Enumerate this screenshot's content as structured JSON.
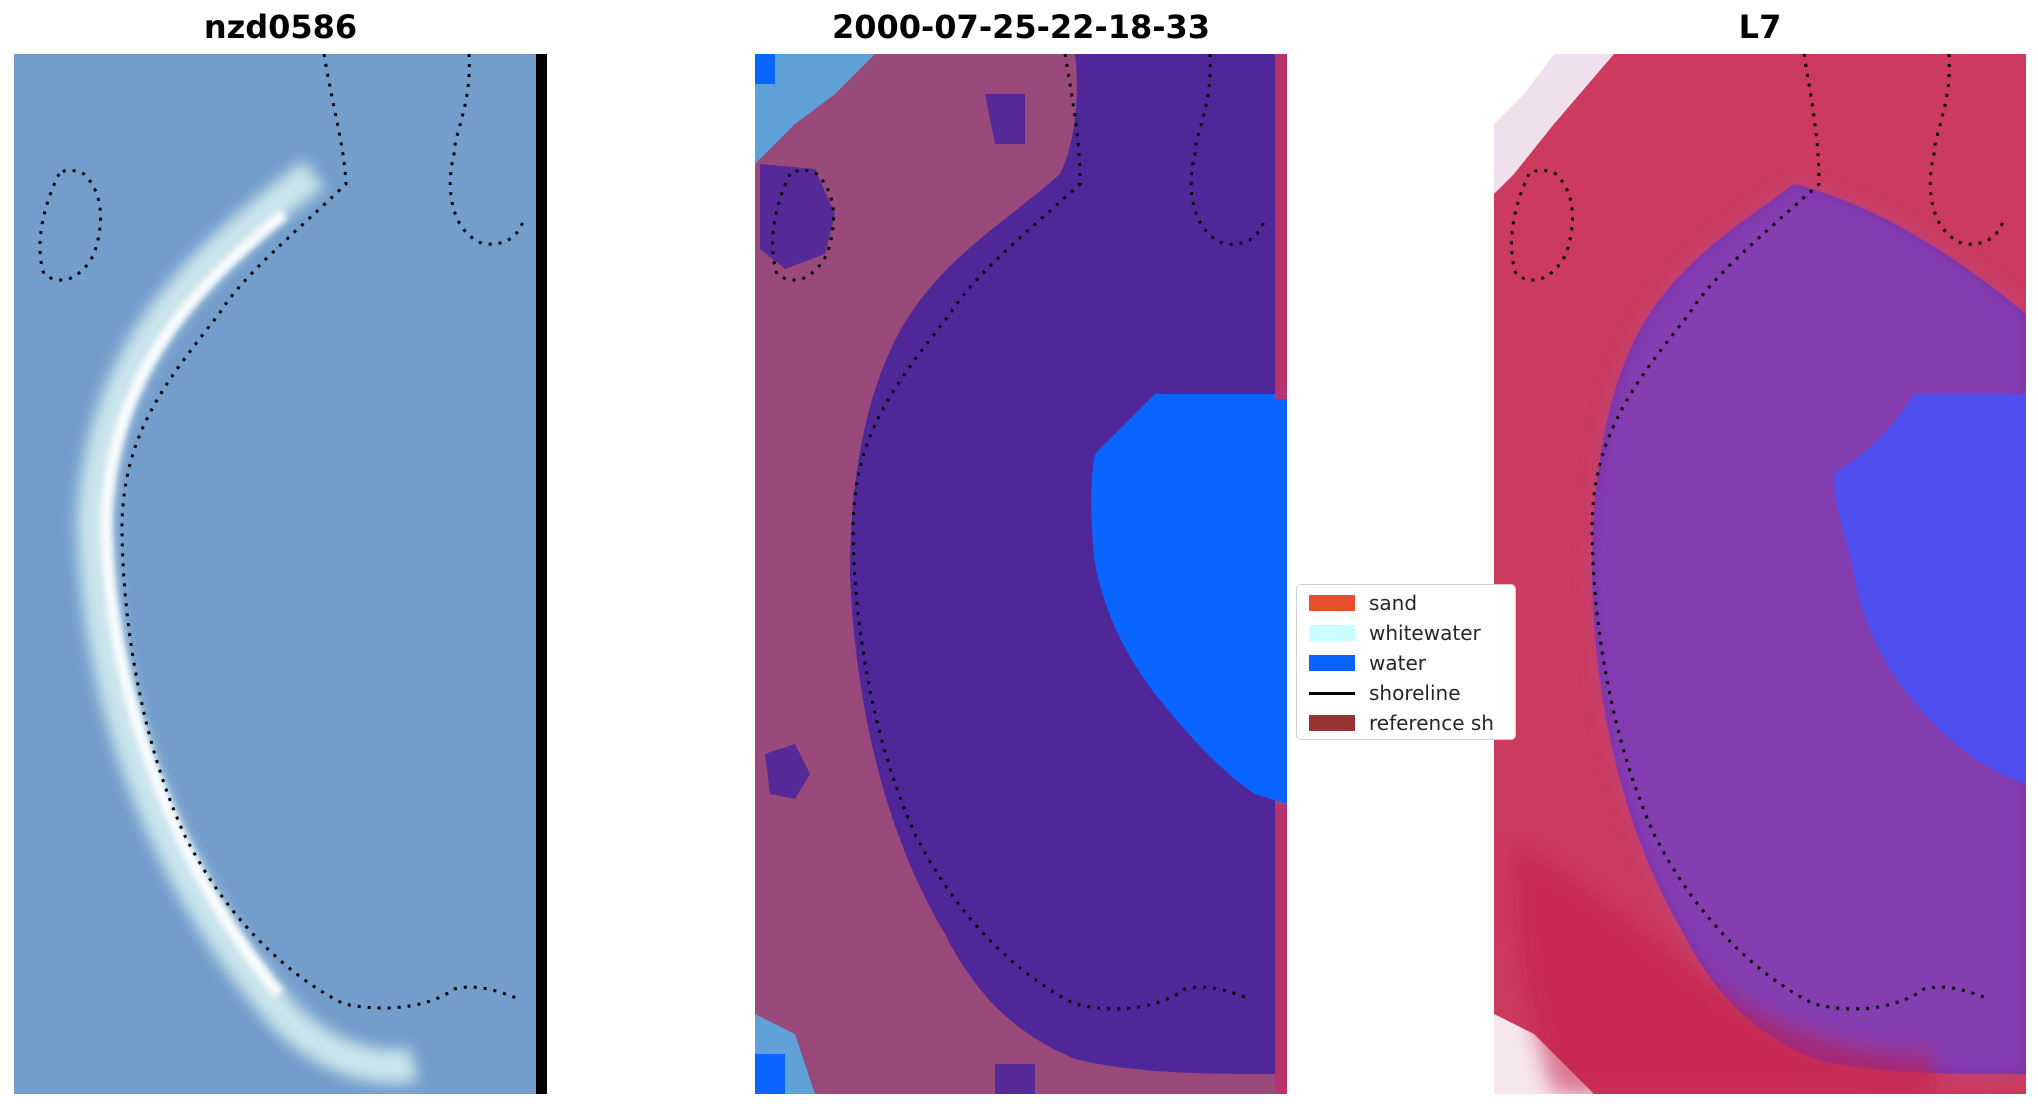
{
  "panels": [
    {
      "title": "nzd0586"
    },
    {
      "title": "2000-07-25-22-18-33"
    },
    {
      "title": "L7"
    }
  ],
  "legend": {
    "items": [
      {
        "label": "sand",
        "color": "#e8502c",
        "type": "patch"
      },
      {
        "label": "whitewater",
        "color": "#c8ffff",
        "type": "patch"
      },
      {
        "label": "water",
        "color": "#0a64ff",
        "type": "patch"
      },
      {
        "label": "shoreline",
        "color": "#000000",
        "type": "line"
      },
      {
        "label": "reference sh",
        "color": "#993333",
        "type": "patch"
      }
    ]
  },
  "colors": {
    "rgb_background": "#6e98cc",
    "rgb_beach": "#dff4f4",
    "classified_land": "#9a4a7a",
    "classified_water_dark": "#4f2799",
    "classified_water_bright": "#0a64ff",
    "index_land": "#cc3a5e",
    "index_water": "#7a2fa8",
    "index_bright_blue": "#5050f0"
  }
}
